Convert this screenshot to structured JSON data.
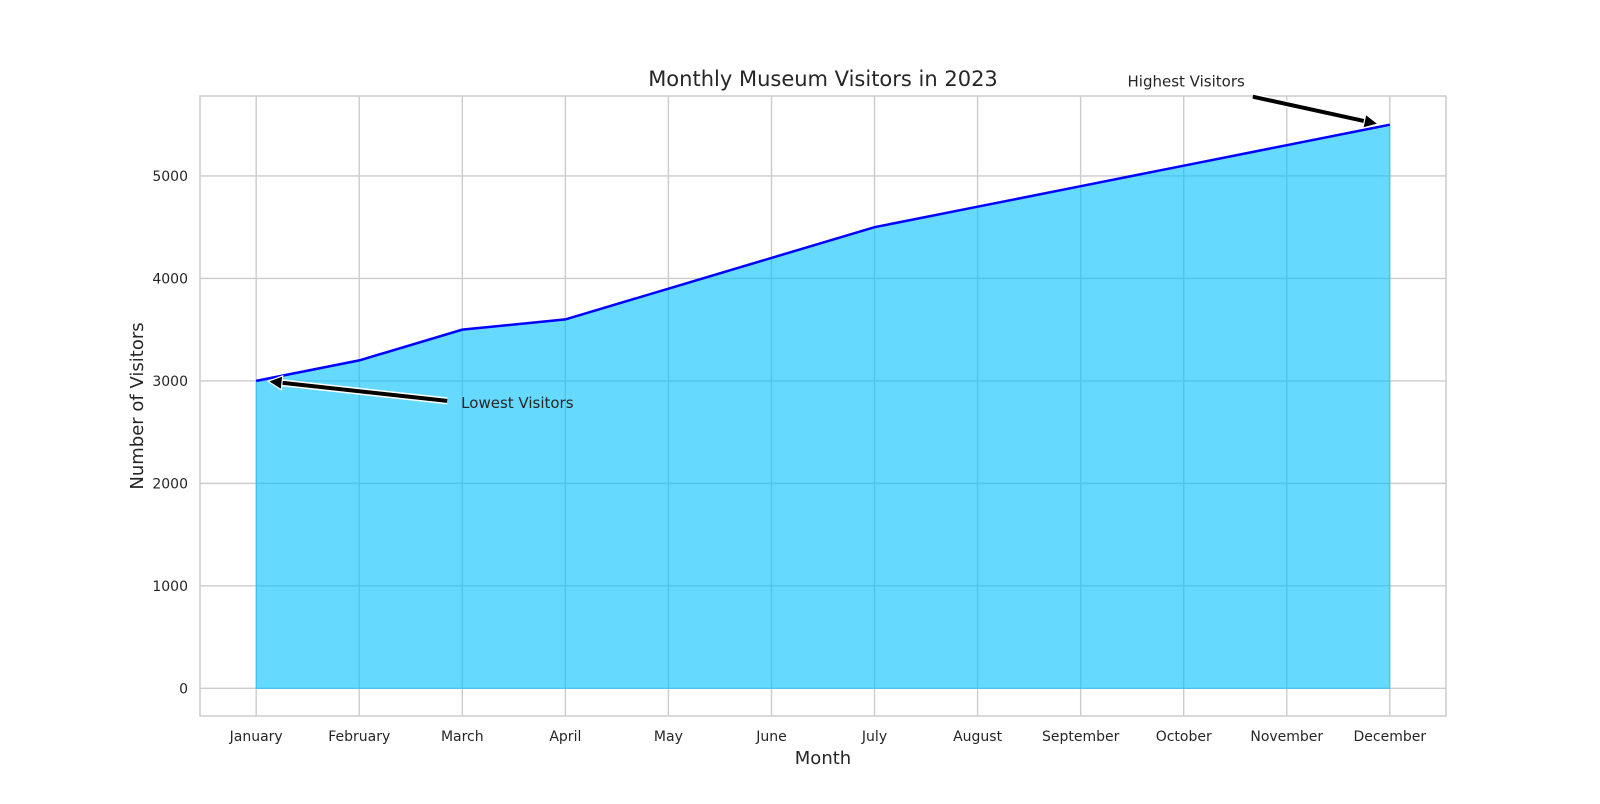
{
  "chart_data": {
    "type": "area",
    "title": "Monthly Museum Visitors in 2023",
    "xlabel": "Month",
    "ylabel": "Number of Visitors",
    "categories": [
      "January",
      "February",
      "March",
      "April",
      "May",
      "June",
      "July",
      "August",
      "September",
      "October",
      "November",
      "December"
    ],
    "series": [
      {
        "values": [
          3000,
          3200,
          3500,
          3600,
          3900,
          4200,
          4500,
          4700,
          4900,
          5100,
          5300,
          5500
        ],
        "line_color": "#0000ff",
        "fill_color": "#00bfff"
      }
    ],
    "ylim": [
      -270,
      5780
    ],
    "yticks": [
      0,
      1000,
      2000,
      3000,
      4000,
      5000
    ],
    "grid": true,
    "annotations": [
      {
        "text": "Lowest Visitors",
        "category": "January",
        "value": 3000
      },
      {
        "text": "Highest Visitors",
        "category": "December",
        "value": 5500
      }
    ]
  }
}
